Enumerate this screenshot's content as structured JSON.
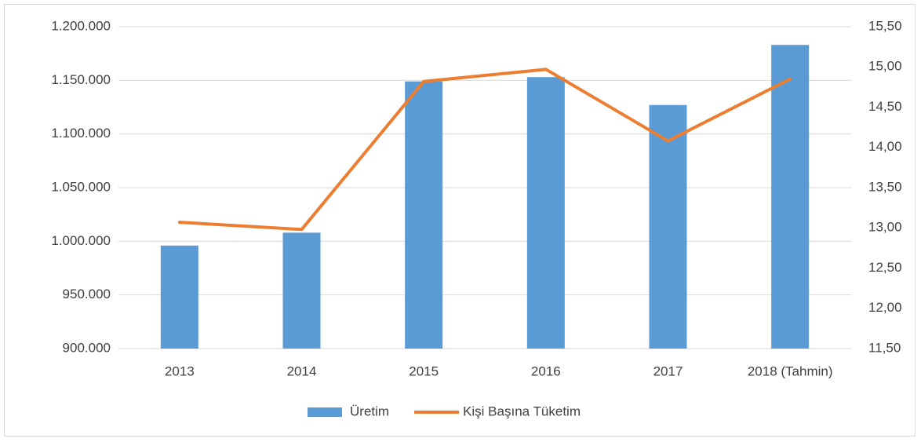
{
  "chart_data": {
    "type": "bar_line",
    "categories": [
      "2013",
      "2014",
      "2015",
      "2016",
      "2017",
      "2018 (Tahmin)"
    ],
    "series": [
      {
        "name": "Üretim",
        "type": "bar",
        "color": "#5b9bd5",
        "values": [
          996000,
          1008000,
          1149000,
          1153000,
          1127000,
          1183000
        ]
      },
      {
        "name": "Kişi Başına Tüketim",
        "type": "line",
        "color": "#ed7d31",
        "axis": "y2",
        "values": [
          13.07,
          12.98,
          14.82,
          14.97,
          14.08,
          14.85
        ]
      }
    ],
    "ylim": [
      900000,
      1200000
    ],
    "yticks": [
      {
        "value": 900000,
        "label": "900.000"
      },
      {
        "value": 950000,
        "label": "950.000"
      },
      {
        "value": 1000000,
        "label": "1.000.000"
      },
      {
        "value": 1050000,
        "label": "1.050.000"
      },
      {
        "value": 1100000,
        "label": "1.100.000"
      },
      {
        "value": 1150000,
        "label": "1.150.000"
      },
      {
        "value": 1200000,
        "label": "1.200.000"
      }
    ],
    "y2lim": [
      11.5,
      15.5
    ],
    "y2ticks": [
      {
        "value": 11.5,
        "label": "11,50"
      },
      {
        "value": 12,
        "label": "12,00"
      },
      {
        "value": 12.5,
        "label": "12,50"
      },
      {
        "value": 13,
        "label": "13,00"
      },
      {
        "value": 13.5,
        "label": "13,50"
      },
      {
        "value": 14,
        "label": "14,00"
      },
      {
        "value": 14.5,
        "label": "14,50"
      },
      {
        "value": 15,
        "label": "15,00"
      },
      {
        "value": 15.5,
        "label": "15,50"
      }
    ],
    "grid": true,
    "legend": "bottom"
  }
}
